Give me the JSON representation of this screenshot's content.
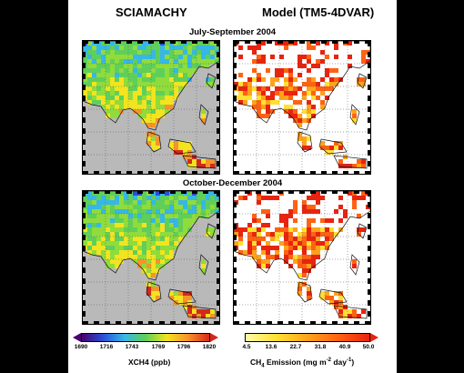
{
  "headers": {
    "left": "SCIAMACHY",
    "right": "Model (TM5-4DVAR)"
  },
  "periods": {
    "top": "July-September 2004",
    "bottom": "October-December 2004"
  },
  "maps": [
    {
      "id": "sciamachy-jul-sep",
      "variable": "XCH4",
      "period": "July-September 2004"
    },
    {
      "id": "model-jul-sep",
      "variable": "CH4 Emission",
      "period": "July-September 2004"
    },
    {
      "id": "sciamachy-oct-dec",
      "variable": "XCH4",
      "period": "October-December 2004"
    },
    {
      "id": "model-oct-dec",
      "variable": "CH4 Emission",
      "period": "October-December 2004"
    }
  ],
  "colorbars": {
    "left": {
      "ticks": [
        "1690",
        "1716",
        "1743",
        "1769",
        "1796",
        "1820"
      ],
      "label": "XCH4 (ppb)",
      "colors": [
        "#4b0070",
        "#2a4fd8",
        "#36b7e6",
        "#5fcf5a",
        "#f2e41f",
        "#f7932b",
        "#d6281b"
      ]
    },
    "right": {
      "ticks": [
        "4.5",
        "13.6",
        "22.7",
        "31.8",
        "40.9",
        "50.0"
      ],
      "label_main": "CH",
      "label_sub": "4",
      "label_rest": " Emission (mg m",
      "label_sup1": "-2",
      "label_mid": " day",
      "label_sup2": "-1",
      "label_end": ")",
      "colors": [
        "#fffaa6",
        "#ffe033",
        "#ffa31a",
        "#ff6212",
        "#e8230f"
      ]
    }
  },
  "colors": {
    "sciamachy_background": "#b9b9b9",
    "model_background": "#ffffff"
  }
}
